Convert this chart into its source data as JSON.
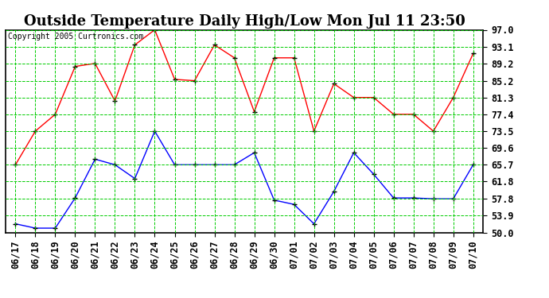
{
  "title": "Outside Temperature Daily High/Low Mon Jul 11 23:50",
  "copyright": "Copyright 2005 Curtronics.com",
  "dates": [
    "06/17",
    "06/18",
    "06/19",
    "06/20",
    "06/21",
    "06/22",
    "06/23",
    "06/24",
    "06/25",
    "06/26",
    "06/27",
    "06/28",
    "06/29",
    "06/30",
    "07/01",
    "07/02",
    "07/03",
    "07/04",
    "07/05",
    "07/06",
    "07/07",
    "07/08",
    "07/09",
    "07/10"
  ],
  "highs": [
    65.7,
    73.5,
    77.4,
    88.5,
    89.2,
    80.5,
    93.5,
    97.0,
    85.5,
    85.2,
    93.5,
    90.5,
    78.0,
    90.5,
    90.5,
    73.5,
    84.5,
    81.3,
    81.3,
    77.4,
    77.4,
    73.5,
    81.3,
    91.5
  ],
  "lows": [
    52.0,
    51.0,
    51.0,
    58.0,
    67.0,
    65.7,
    62.5,
    73.5,
    65.7,
    65.7,
    65.7,
    65.7,
    68.5,
    57.5,
    56.5,
    52.0,
    59.5,
    68.5,
    63.5,
    58.0,
    58.0,
    57.8,
    57.8,
    65.7
  ],
  "bg_color": "#ffffff",
  "plot_bg": "#ffffff",
  "grid_color": "#00cc00",
  "high_color": "#ff0000",
  "low_color": "#0000ff",
  "yticks": [
    50.0,
    53.9,
    57.8,
    61.8,
    65.7,
    69.6,
    73.5,
    77.4,
    81.3,
    85.2,
    89.2,
    93.1,
    97.0
  ],
  "ylim": [
    50.0,
    97.0
  ],
  "title_fontsize": 13,
  "tick_fontsize": 8.5,
  "marker": "+"
}
